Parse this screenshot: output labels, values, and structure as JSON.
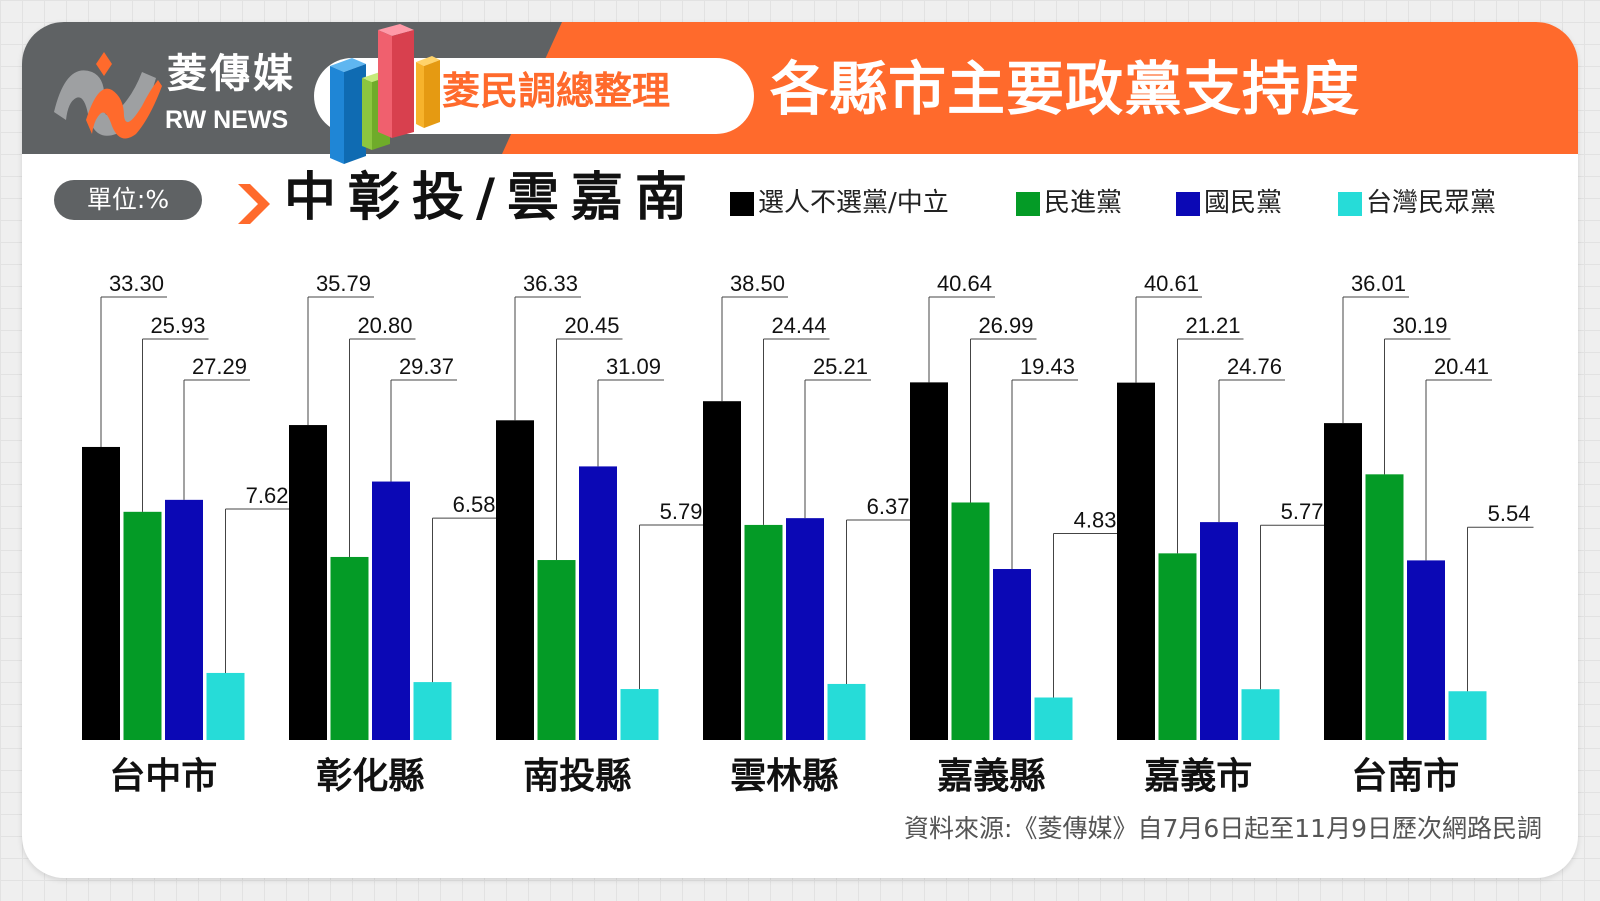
{
  "header": {
    "brand_cn": "菱傳媒",
    "brand_en": "RW NEWS",
    "tag": "菱民調總整理",
    "title": "各縣市主要政黨支持度"
  },
  "unit_label": "單位:%",
  "region_title": "中彰投/雲嘉南",
  "source": "資料來源:《菱傳媒》自7月6日起至11月9日歷次網路民調",
  "colors": {
    "header_gray": "#5f6264",
    "header_orange": "#ff6a2c",
    "undecided": "#000000",
    "dpp": "#049b26",
    "kmt": "#0b08b5",
    "tpp": "#26dcd8"
  },
  "chart_data": {
    "type": "bar",
    "categories": [
      "台中市",
      "彰化縣",
      "南投縣",
      "雲林縣",
      "嘉義縣",
      "嘉義市",
      "台南市"
    ],
    "series": [
      {
        "name": "選人不選黨/中立",
        "color": "#000000",
        "values": [
          33.3,
          35.79,
          36.33,
          38.5,
          40.64,
          40.61,
          36.01
        ]
      },
      {
        "name": "民進黨",
        "color": "#049b26",
        "values": [
          25.93,
          20.8,
          20.45,
          24.44,
          26.99,
          21.21,
          30.19
        ]
      },
      {
        "name": "國民黨",
        "color": "#0b08b5",
        "values": [
          27.29,
          29.37,
          31.09,
          25.21,
          19.43,
          24.76,
          20.41
        ]
      },
      {
        "name": "台灣民眾黨",
        "color": "#26dcd8",
        "values": [
          7.62,
          6.58,
          5.79,
          6.37,
          4.83,
          5.77,
          5.54
        ]
      }
    ],
    "labels": [
      [
        "33.30",
        "25.93",
        "27.29",
        "7.62"
      ],
      [
        "35.79",
        "20.80",
        "29.37",
        "6.58"
      ],
      [
        "36.33",
        "20.45",
        "31.09",
        "5.79"
      ],
      [
        "38.50",
        "24.44",
        "25.21",
        "6.37"
      ],
      [
        "40.64",
        "26.99",
        "19.43",
        "4.83"
      ],
      [
        "40.61",
        "21.21",
        "24.76",
        "5.77"
      ],
      [
        "36.01",
        "30.19",
        "20.41",
        "5.54"
      ]
    ],
    "unit": "%",
    "legend_position": "top-right",
    "grid": false
  }
}
